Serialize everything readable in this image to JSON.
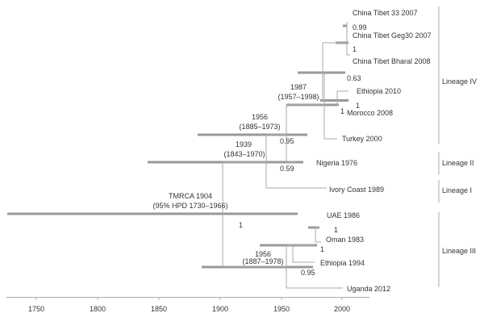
{
  "tips": {
    "tibet33": "China Tibet 33 2007",
    "geg30": "China Tibet Geg30 2007",
    "bharal": "China Tibet Bharal 2008",
    "ethiopia2010": "Ethiopia 2010",
    "morocco": "Morocco 2008",
    "turkey": "Turkey 2000",
    "nigeria": "Nigeria 1976",
    "ivory": "Ivory Coast 1989",
    "uae": "UAE 1986",
    "oman": "Oman 1983",
    "ethiopia1994": "Ethiopia 1994",
    "uganda": "Uganda 2012"
  },
  "support": {
    "s099": "0.99",
    "s1a": "1",
    "s063": "0.63",
    "s1b": "1",
    "s1c": "1",
    "s095a": "0.95",
    "s059": "0.59",
    "s1root": "1",
    "s1d": "1",
    "s1e": "1",
    "s095b": "0.95"
  },
  "node_dates": {
    "n1987_year": "1987",
    "n1987_hpd": "(1957–1998)",
    "n1956_year": "1956",
    "n1956_hpd": "(1885–1973)",
    "n1939_year": "1939",
    "n1939_hpd": "(1843–1970)",
    "tmrca": "TMRCA 1904",
    "tmrca_hpd": "(95% HPD 1730–1966)",
    "n1956b_year": "1956",
    "n1956b_hpd": "(1887–1978)"
  },
  "lineages": {
    "iv": "Lineage IV",
    "ii": "Lineage II",
    "i": "Lineage I",
    "iii": "Lineage III"
  },
  "axis_ticks": [
    "1750",
    "1800",
    "1850",
    "1900",
    "1950",
    "2000"
  ],
  "colors": {
    "branch": "#aaaaaa",
    "hpd_bar": "#999999",
    "text": "#333333"
  }
}
